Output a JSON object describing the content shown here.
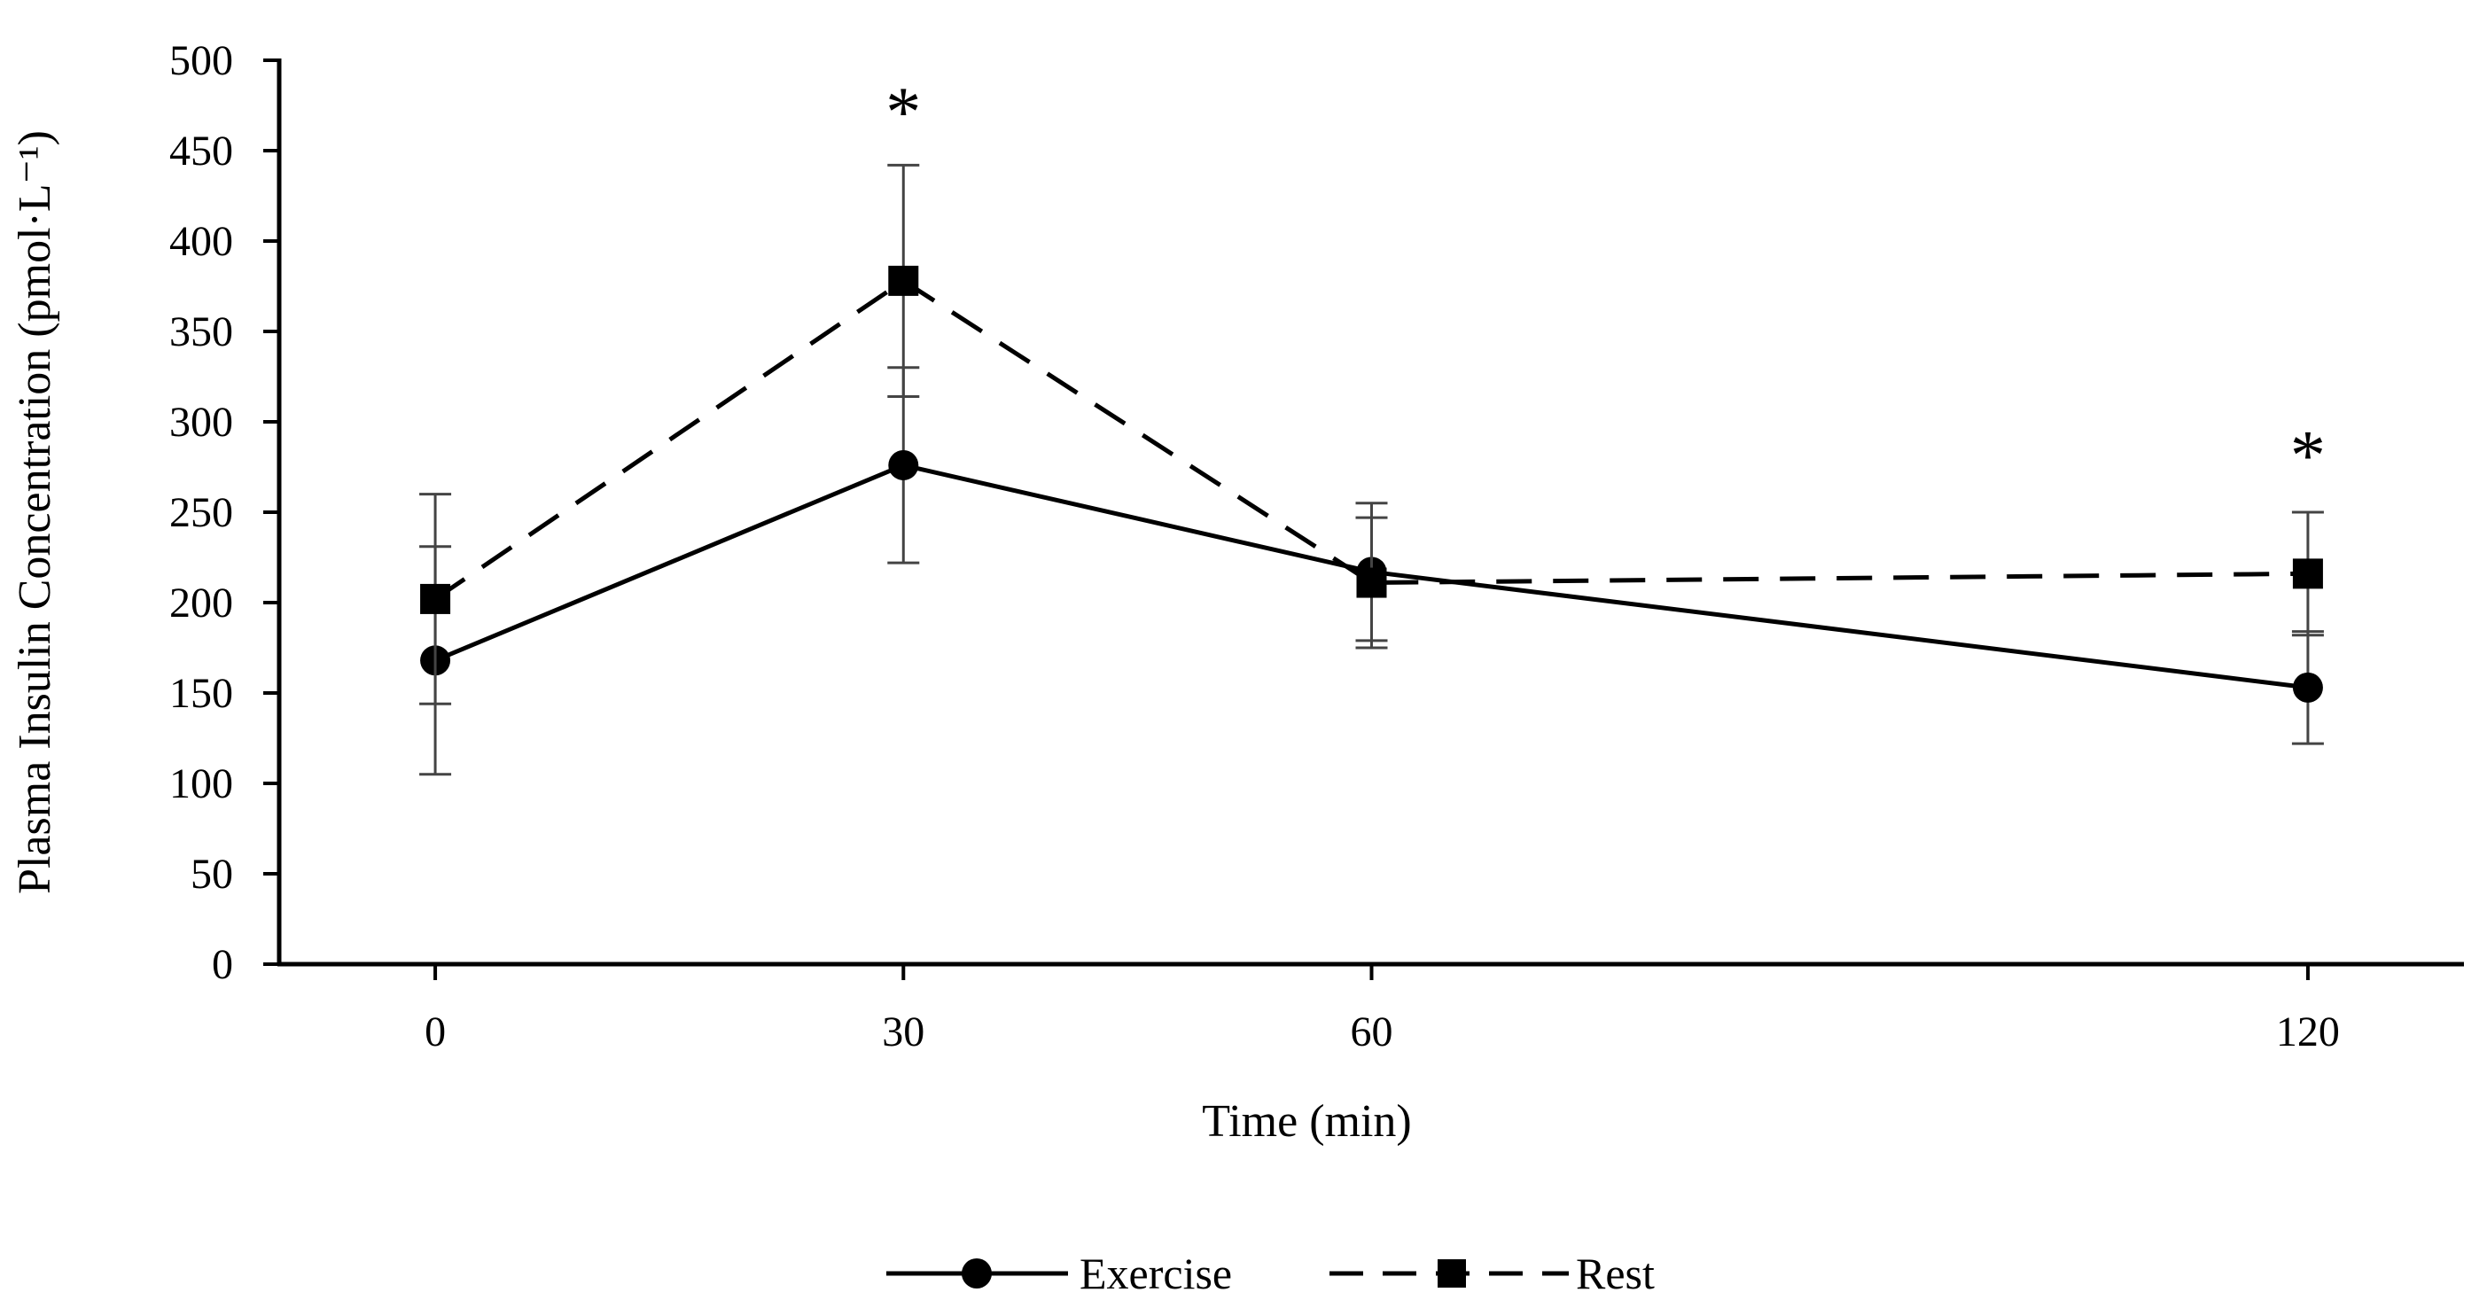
{
  "chart_data": {
    "type": "line",
    "title": "",
    "xlabel": "Time (min)",
    "ylabel": "Plasma Insulin Concentration (pmol·L⁻¹)",
    "x": [
      0,
      30,
      60,
      120
    ],
    "x_tick_labels": [
      "0",
      "30",
      "60",
      "120"
    ],
    "xlim": [
      -10,
      130
    ],
    "ylim": [
      0,
      500
    ],
    "y_ticks": [
      0,
      50,
      100,
      150,
      200,
      250,
      300,
      350,
      400,
      450,
      500
    ],
    "grid": false,
    "legend_position": "bottom-center",
    "series": [
      {
        "name": "Exercise",
        "marker": "circle",
        "line_style": "solid",
        "values": [
          168,
          276,
          217,
          153
        ],
        "error": [
          63,
          54,
          38,
          31
        ]
      },
      {
        "name": "Rest",
        "marker": "square",
        "line_style": "dashed",
        "values": [
          202,
          378,
          211,
          216
        ],
        "error": [
          58,
          64,
          36,
          34
        ]
      }
    ],
    "annotations": [
      {
        "text": "*",
        "x": 30,
        "y": 480
      },
      {
        "text": "*",
        "x": 120,
        "y": 290
      }
    ]
  }
}
